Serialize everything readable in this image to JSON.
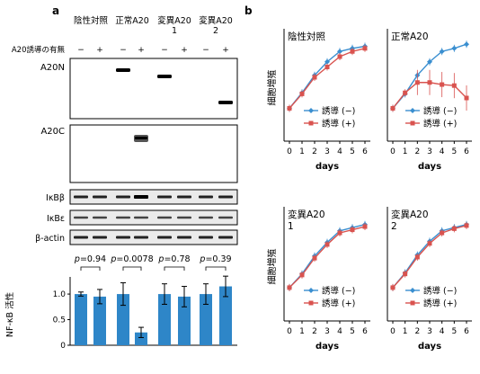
{
  "panel_a": {
    "label": "a",
    "headers": [
      "陰性対照",
      "正常A20",
      "変異A20\n1",
      "変異A20\n2"
    ],
    "induction_label": "A20誘導の有無",
    "signs": [
      "−",
      "+",
      "−",
      "+",
      "−",
      "+",
      "−",
      "+"
    ],
    "blot_labels": {
      "a20n": "A20N",
      "a20c": "A20C",
      "ikbb": "IκBβ",
      "ikbe": "IκBε",
      "actin": "β-actin"
    },
    "a20n_band_lanes": [
      3,
      5,
      8
    ],
    "a20c_band_lanes": [
      4
    ],
    "bar_chart": {
      "type": "bar",
      "ylabel": "NF-κB 活性",
      "ylim": [
        0,
        1.3
      ],
      "yticks": [
        "0",
        "0.5",
        "1.0"
      ],
      "values": [
        1.0,
        0.95,
        1.0,
        0.25,
        1.0,
        0.95,
        1.0,
        1.15
      ],
      "errors": [
        0.04,
        0.14,
        0.22,
        0.1,
        0.2,
        0.2,
        0.2,
        0.2
      ],
      "color": "#2e86c8",
      "pvalues": [
        "p=0.94",
        "p=0.0078",
        "p=0.78",
        "p=0.39"
      ]
    }
  },
  "panel_b": {
    "label": "b",
    "chart_data": [
      {
        "type": "line",
        "title": "陰性対照",
        "xlabel": "days",
        "ylabel": "細胞増殖",
        "x": [
          0,
          1,
          2,
          3,
          4,
          5,
          6
        ],
        "series": [
          {
            "name": "誘導 (−)",
            "color": "#3a8fd0",
            "values": [
              0.3,
              0.45,
              0.62,
              0.75,
              0.85,
              0.88,
              0.9
            ]
          },
          {
            "name": "誘導 (+)",
            "color": "#d9534f",
            "values": [
              0.3,
              0.44,
              0.6,
              0.7,
              0.8,
              0.85,
              0.88
            ]
          }
        ]
      },
      {
        "type": "line",
        "title": "正常A20",
        "xlabel": "days",
        "ylabel": "",
        "x": [
          0,
          1,
          2,
          3,
          4,
          5,
          6
        ],
        "series": [
          {
            "name": "誘導 (−)",
            "color": "#3a8fd0",
            "values": [
              0.3,
              0.44,
              0.62,
              0.75,
              0.85,
              0.88,
              0.92
            ]
          },
          {
            "name": "誘導 (+)",
            "color": "#d9534f",
            "values": [
              0.3,
              0.45,
              0.55,
              0.55,
              0.53,
              0.52,
              0.4
            ]
          }
        ]
      },
      {
        "type": "line",
        "title": "変異A20\n1",
        "xlabel": "days",
        "ylabel": "細胞増殖",
        "x": [
          0,
          1,
          2,
          3,
          4,
          5,
          6
        ],
        "series": [
          {
            "name": "誘導 (−)",
            "color": "#3a8fd0",
            "values": [
              0.3,
              0.43,
              0.6,
              0.73,
              0.84,
              0.87,
              0.9
            ]
          },
          {
            "name": "誘導 (+)",
            "color": "#d9534f",
            "values": [
              0.3,
              0.42,
              0.58,
              0.71,
              0.82,
              0.85,
              0.88
            ]
          }
        ]
      },
      {
        "type": "line",
        "title": "変異A20\n2",
        "xlabel": "days",
        "ylabel": "",
        "x": [
          0,
          1,
          2,
          3,
          4,
          5,
          6
        ],
        "series": [
          {
            "name": "誘導 (−)",
            "color": "#3a8fd0",
            "values": [
              0.3,
              0.44,
              0.61,
              0.74,
              0.84,
              0.87,
              0.9
            ]
          },
          {
            "name": "誘導 (+)",
            "color": "#d9534f",
            "values": [
              0.3,
              0.43,
              0.59,
              0.72,
              0.82,
              0.86,
              0.89
            ]
          }
        ]
      }
    ]
  }
}
